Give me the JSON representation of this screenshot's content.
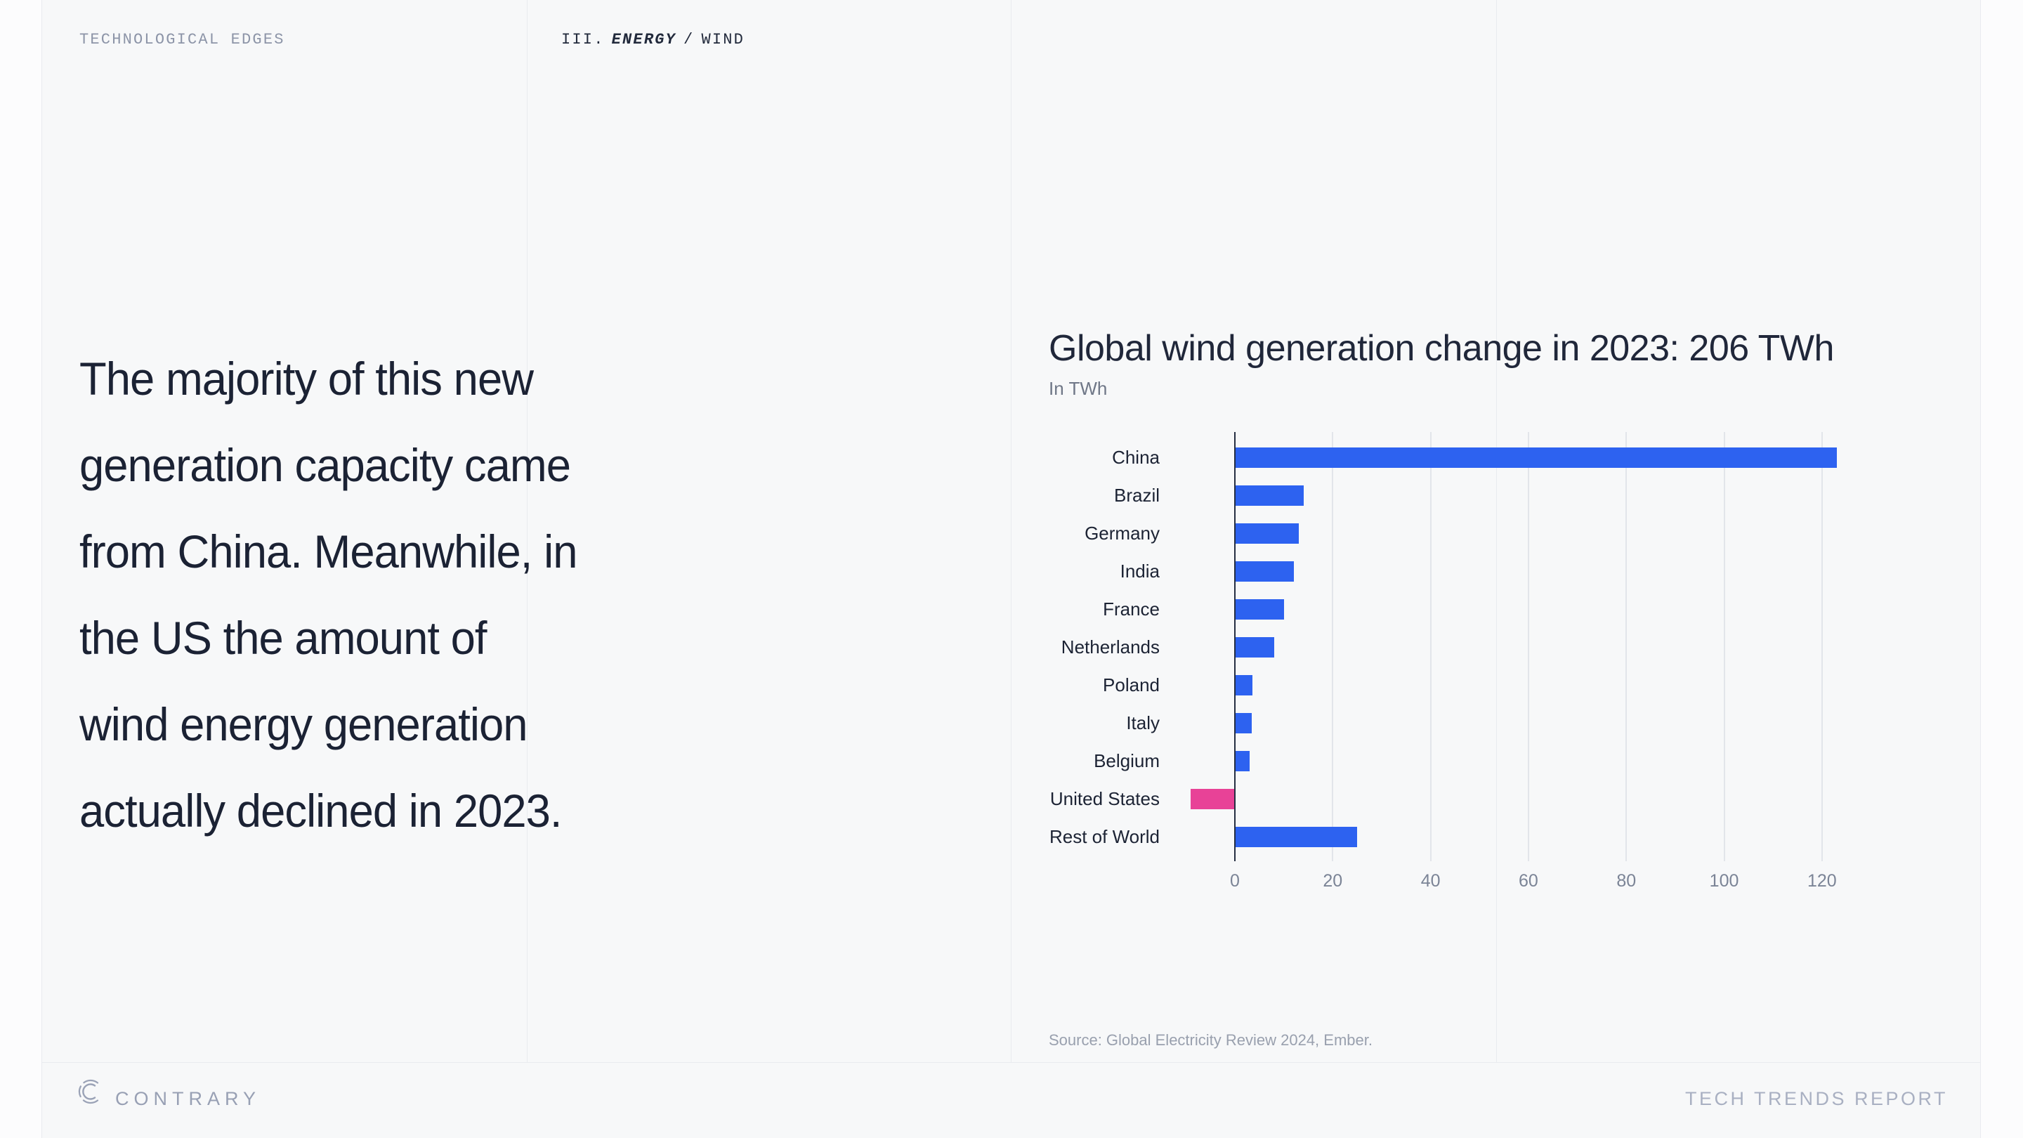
{
  "page": {
    "background": "#fcfcfd",
    "panel_background": "#f7f8f9",
    "divider_color": "#e9ebef"
  },
  "header": {
    "kicker": "TECHNOLOGICAL EDGES",
    "breadcrumb": {
      "number": "III.",
      "section": "ENERGY",
      "separator": "/",
      "page": "WIND"
    }
  },
  "quote": {
    "lines": [
      "The majority of this new",
      "generation capacity came",
      "from China. Meanwhile, in",
      "the US the amount of",
      "wind energy generation",
      "actually declined in 2023."
    ]
  },
  "chart_data": {
    "type": "bar",
    "orientation": "horizontal",
    "title": "Global wind generation change in 2023: 206 TWh",
    "subtitle": "In TWh",
    "unit": "TWh",
    "categories": [
      "China",
      "Brazil",
      "Germany",
      "India",
      "France",
      "Netherlands",
      "Poland",
      "Italy",
      "Belgium",
      "United States",
      "Rest of World"
    ],
    "values": [
      123,
      14,
      13,
      12,
      10,
      8,
      3.6,
      3.4,
      3,
      -9,
      25
    ],
    "x_ticks": [
      0,
      20,
      40,
      60,
      80,
      100,
      120
    ],
    "xlim": [
      -10,
      152
    ],
    "grid": true,
    "legend": false,
    "bar_color": "#2d62f0",
    "negative_bar_color": "#e84297",
    "axis_color": "#252e42",
    "gridline_color": "#e2e5ea",
    "source": "Source: Global Electricity Review 2024, Ember."
  },
  "footer": {
    "brand": "CONTRARY",
    "report_title": "TECH TRENDS REPORT"
  }
}
